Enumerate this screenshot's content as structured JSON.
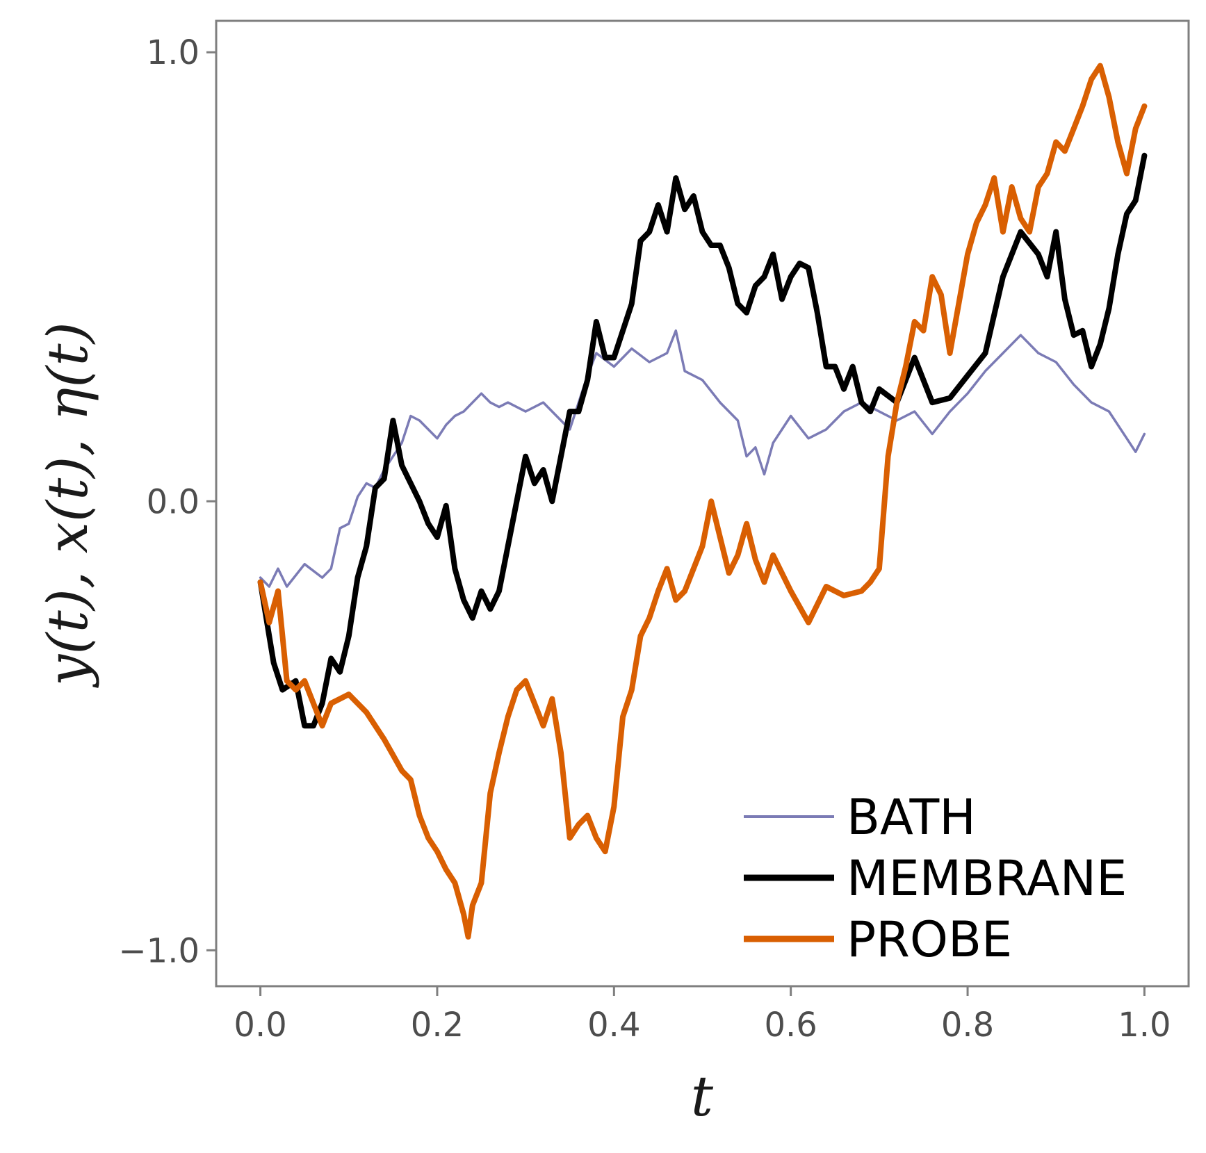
{
  "chart_data": {
    "type": "line",
    "title": "",
    "xlabel": "t",
    "ylabel": "y(t), x(t), η(t)",
    "xlim": [
      -0.05,
      1.05
    ],
    "ylim": [
      -1.08,
      1.07
    ],
    "xticks": [
      0.0,
      0.2,
      0.4,
      0.6,
      0.8,
      1.0
    ],
    "xtick_labels": [
      "0.0",
      "0.2",
      "0.4",
      "0.6",
      "0.8",
      "1.0"
    ],
    "yticks": [
      -1.0,
      0.0,
      1.0
    ],
    "ytick_labels": [
      "−1.0",
      "0.0",
      "1.0"
    ],
    "grid": false,
    "legend_position": "bottom-right",
    "series": [
      {
        "name": "BATH",
        "color": "#7b7bb5",
        "x": [
          0.0,
          0.01,
          0.02,
          0.03,
          0.05,
          0.07,
          0.08,
          0.09,
          0.1,
          0.11,
          0.12,
          0.13,
          0.14,
          0.15,
          0.16,
          0.17,
          0.18,
          0.2,
          0.21,
          0.22,
          0.23,
          0.25,
          0.26,
          0.27,
          0.28,
          0.3,
          0.32,
          0.35,
          0.37,
          0.38,
          0.4,
          0.42,
          0.44,
          0.46,
          0.47,
          0.48,
          0.5,
          0.52,
          0.54,
          0.55,
          0.56,
          0.57,
          0.58,
          0.6,
          0.62,
          0.64,
          0.66,
          0.68,
          0.7,
          0.72,
          0.74,
          0.76,
          0.78,
          0.8,
          0.82,
          0.84,
          0.86,
          0.88,
          0.9,
          0.92,
          0.94,
          0.96,
          0.98,
          0.99,
          1.0
        ],
        "y": [
          -0.17,
          -0.19,
          -0.15,
          -0.19,
          -0.14,
          -0.17,
          -0.15,
          -0.06,
          -0.05,
          0.01,
          0.04,
          0.03,
          0.07,
          0.1,
          0.13,
          0.19,
          0.18,
          0.14,
          0.17,
          0.19,
          0.2,
          0.24,
          0.22,
          0.21,
          0.22,
          0.2,
          0.22,
          0.16,
          0.28,
          0.33,
          0.3,
          0.34,
          0.31,
          0.33,
          0.38,
          0.29,
          0.27,
          0.22,
          0.18,
          0.1,
          0.12,
          0.06,
          0.13,
          0.19,
          0.14,
          0.16,
          0.2,
          0.22,
          0.2,
          0.18,
          0.2,
          0.15,
          0.2,
          0.24,
          0.29,
          0.33,
          0.37,
          0.33,
          0.31,
          0.26,
          0.22,
          0.2,
          0.14,
          0.11,
          0.15
        ]
      },
      {
        "name": "MEMBRANE",
        "color": "#000000",
        "x": [
          0.0,
          0.01,
          0.015,
          0.025,
          0.04,
          0.05,
          0.06,
          0.07,
          0.08,
          0.09,
          0.1,
          0.11,
          0.12,
          0.13,
          0.14,
          0.15,
          0.16,
          0.18,
          0.19,
          0.2,
          0.21,
          0.22,
          0.23,
          0.24,
          0.25,
          0.26,
          0.27,
          0.28,
          0.29,
          0.3,
          0.31,
          0.32,
          0.33,
          0.34,
          0.35,
          0.36,
          0.37,
          0.38,
          0.39,
          0.4,
          0.42,
          0.43,
          0.44,
          0.45,
          0.46,
          0.47,
          0.48,
          0.49,
          0.5,
          0.51,
          0.52,
          0.53,
          0.54,
          0.55,
          0.56,
          0.57,
          0.58,
          0.59,
          0.6,
          0.61,
          0.62,
          0.63,
          0.64,
          0.65,
          0.66,
          0.67,
          0.68,
          0.69,
          0.7,
          0.72,
          0.74,
          0.76,
          0.78,
          0.8,
          0.82,
          0.84,
          0.86,
          0.88,
          0.89,
          0.9,
          0.91,
          0.92,
          0.93,
          0.94,
          0.95,
          0.96,
          0.97,
          0.98,
          0.99,
          1.0
        ],
        "y": [
          -0.18,
          -0.3,
          -0.36,
          -0.42,
          -0.4,
          -0.5,
          -0.5,
          -0.45,
          -0.35,
          -0.38,
          -0.3,
          -0.17,
          -0.1,
          0.03,
          0.05,
          0.18,
          0.08,
          0.0,
          -0.05,
          -0.08,
          -0.01,
          -0.15,
          -0.22,
          -0.26,
          -0.2,
          -0.24,
          -0.2,
          -0.1,
          0.0,
          0.1,
          0.04,
          0.07,
          0.0,
          0.1,
          0.2,
          0.2,
          0.27,
          0.4,
          0.32,
          0.32,
          0.44,
          0.58,
          0.6,
          0.66,
          0.6,
          0.72,
          0.65,
          0.68,
          0.6,
          0.57,
          0.57,
          0.52,
          0.44,
          0.42,
          0.48,
          0.5,
          0.55,
          0.45,
          0.5,
          0.53,
          0.52,
          0.42,
          0.3,
          0.3,
          0.25,
          0.3,
          0.22,
          0.2,
          0.25,
          0.22,
          0.32,
          0.22,
          0.23,
          0.28,
          0.33,
          0.5,
          0.6,
          0.55,
          0.5,
          0.6,
          0.45,
          0.37,
          0.38,
          0.3,
          0.35,
          0.43,
          0.55,
          0.64,
          0.67,
          0.77
        ]
      },
      {
        "name": "PROBE",
        "color": "#d95f02",
        "x": [
          0.0,
          0.01,
          0.02,
          0.025,
          0.03,
          0.04,
          0.05,
          0.06,
          0.07,
          0.08,
          0.1,
          0.12,
          0.14,
          0.16,
          0.17,
          0.18,
          0.19,
          0.2,
          0.21,
          0.22,
          0.23,
          0.235,
          0.24,
          0.25,
          0.26,
          0.27,
          0.28,
          0.29,
          0.3,
          0.31,
          0.32,
          0.33,
          0.34,
          0.35,
          0.36,
          0.37,
          0.38,
          0.39,
          0.4,
          0.41,
          0.42,
          0.43,
          0.44,
          0.45,
          0.46,
          0.47,
          0.48,
          0.5,
          0.51,
          0.52,
          0.53,
          0.54,
          0.55,
          0.56,
          0.57,
          0.58,
          0.6,
          0.62,
          0.64,
          0.66,
          0.68,
          0.69,
          0.7,
          0.71,
          0.72,
          0.73,
          0.74,
          0.75,
          0.76,
          0.77,
          0.78,
          0.8,
          0.81,
          0.82,
          0.83,
          0.84,
          0.85,
          0.86,
          0.87,
          0.88,
          0.89,
          0.9,
          0.91,
          0.92,
          0.93,
          0.94,
          0.95,
          0.96,
          0.97,
          0.98,
          0.99,
          1.0
        ],
        "y": [
          -0.18,
          -0.27,
          -0.2,
          -0.3,
          -0.4,
          -0.42,
          -0.4,
          -0.45,
          -0.5,
          -0.45,
          -0.43,
          -0.47,
          -0.53,
          -0.6,
          -0.62,
          -0.7,
          -0.75,
          -0.78,
          -0.82,
          -0.85,
          -0.92,
          -0.97,
          -0.9,
          -0.85,
          -0.65,
          -0.56,
          -0.48,
          -0.42,
          -0.4,
          -0.45,
          -0.5,
          -0.44,
          -0.56,
          -0.75,
          -0.72,
          -0.7,
          -0.75,
          -0.78,
          -0.68,
          -0.48,
          -0.42,
          -0.3,
          -0.26,
          -0.2,
          -0.15,
          -0.22,
          -0.2,
          -0.1,
          0.0,
          -0.08,
          -0.16,
          -0.12,
          -0.05,
          -0.13,
          -0.18,
          -0.12,
          -0.2,
          -0.27,
          -0.19,
          -0.21,
          -0.2,
          -0.18,
          -0.15,
          0.1,
          0.22,
          0.3,
          0.4,
          0.38,
          0.5,
          0.46,
          0.33,
          0.55,
          0.62,
          0.66,
          0.72,
          0.6,
          0.7,
          0.63,
          0.6,
          0.7,
          0.73,
          0.8,
          0.78,
          0.83,
          0.88,
          0.94,
          0.97,
          0.9,
          0.8,
          0.73,
          0.83,
          0.88
        ]
      }
    ]
  }
}
